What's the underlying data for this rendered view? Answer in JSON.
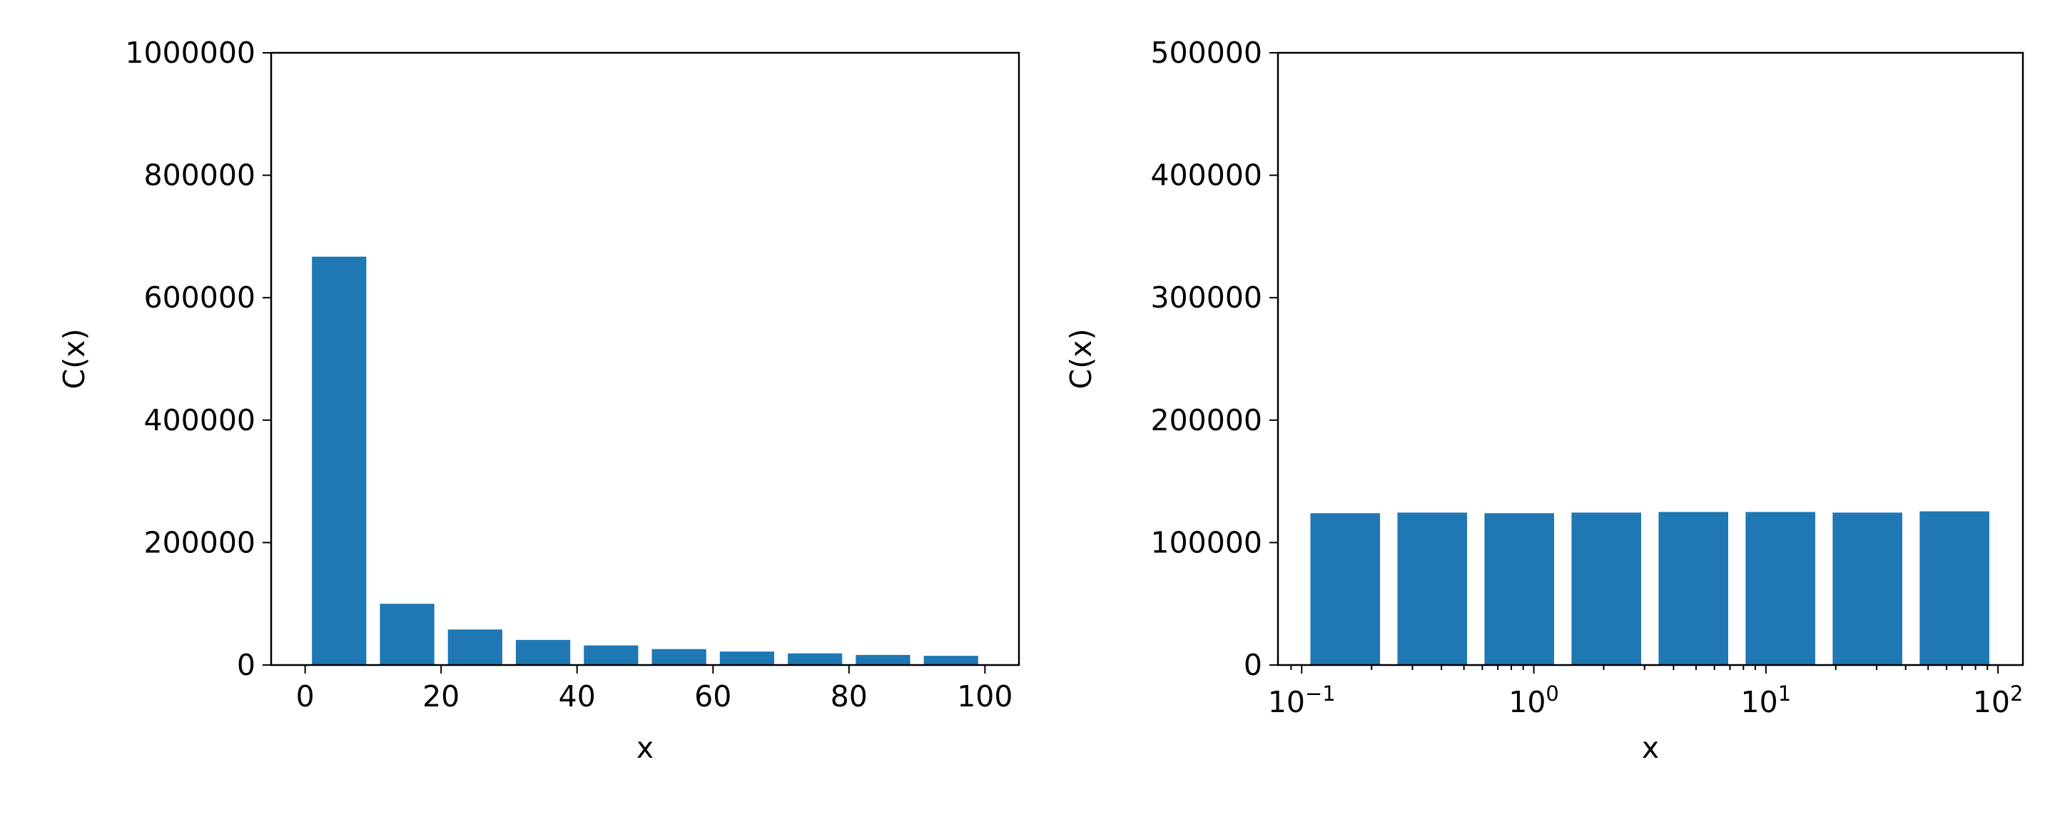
{
  "chart_data": [
    {
      "type": "histogram",
      "xlabel": "x",
      "ylabel": "C(x)",
      "color": "#1f77b4",
      "rwidth": 0.8,
      "bins": [
        0,
        10,
        20,
        30,
        40,
        50,
        60,
        70,
        80,
        90,
        100
      ],
      "values": [
        667000,
        100000,
        58000,
        41000,
        32000,
        26000,
        22000,
        19000,
        16500,
        15000
      ],
      "xlim": [
        -5,
        105
      ],
      "xticks": [
        0,
        20,
        40,
        60,
        80,
        100
      ],
      "ylim": [
        0,
        1000000
      ],
      "yticks": [
        0,
        200000,
        400000,
        600000,
        800000,
        1000000
      ]
    },
    {
      "type": "histogram",
      "xlabel": "x",
      "ylabel": "C(x)",
      "color": "#1f77b4",
      "rwidth": 0.8,
      "xscale": "log",
      "bins": [
        0.1,
        0.2371,
        0.5623,
        1.3335,
        3.1623,
        7.4989,
        17.7828,
        42.1697,
        100
      ],
      "values": [
        124000,
        124500,
        124000,
        124500,
        125000,
        125000,
        124500,
        125500
      ],
      "xlim": [
        0.079,
        128
      ],
      "xticks": [
        {
          "value": 0.1,
          "label": "10",
          "exponent": "−1"
        },
        {
          "value": 1,
          "label": "10",
          "exponent": "0"
        },
        {
          "value": 10,
          "label": "10",
          "exponent": "1"
        },
        {
          "value": 100,
          "label": "10",
          "exponent": "2"
        }
      ],
      "minor_xticks": [
        0.09,
        0.2,
        0.3,
        0.4,
        0.5,
        0.6,
        0.7,
        0.8,
        0.9,
        2,
        3,
        4,
        5,
        6,
        7,
        8,
        9,
        20,
        30,
        40,
        50,
        60,
        70,
        80,
        90
      ],
      "ylim": [
        0,
        500000
      ],
      "yticks": [
        0,
        100000,
        200000,
        300000,
        400000,
        500000
      ]
    }
  ]
}
